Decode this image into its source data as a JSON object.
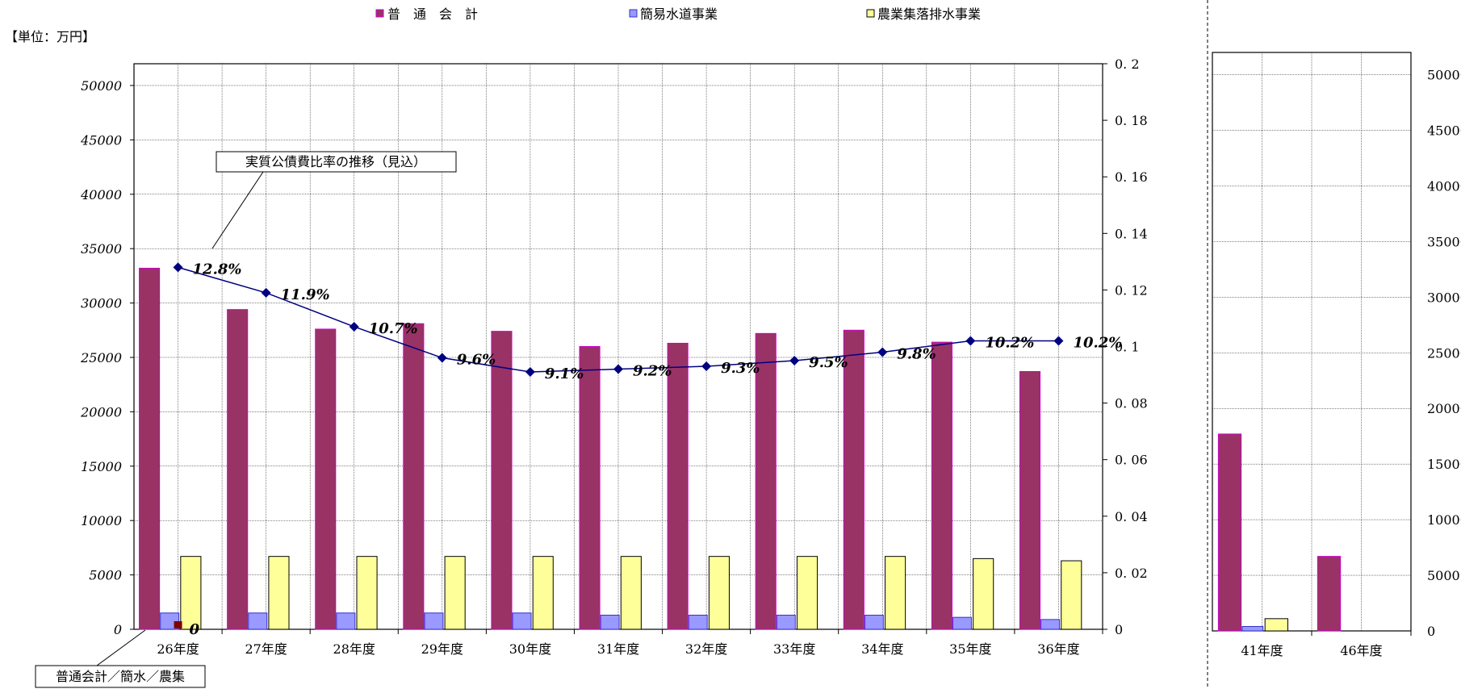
{
  "unit_label": "【単位：万円】",
  "colors": {
    "general": "#993366",
    "general_edge": "#cc00cc",
    "water": "#9999ff",
    "water_edge": "#3333cc",
    "agri": "#ffff99",
    "line": "#000080",
    "zero_marker": "#800000"
  },
  "legend": [
    {
      "name": "普　通　会　計",
      "color_key": "general"
    },
    {
      "name": "簡易水道事業",
      "color_key": "water"
    },
    {
      "name": "農業集落排水事業",
      "color_key": "agri"
    }
  ],
  "chart_data": [
    {
      "type": "bar",
      "categories": [
        "26年度",
        "27年度",
        "28年度",
        "29年度",
        "30年度",
        "31年度",
        "32年度",
        "33年度",
        "34年度",
        "35年度",
        "36年度"
      ],
      "series": [
        {
          "name": "普　通　会　計",
          "values": [
            33200,
            29400,
            27600,
            28100,
            27400,
            26000,
            26300,
            27200,
            27500,
            26400,
            23700
          ]
        },
        {
          "name": "簡易水道事業",
          "values": [
            1500,
            1500,
            1500,
            1500,
            1500,
            1300,
            1300,
            1300,
            1300,
            1100,
            900
          ]
        },
        {
          "name": "農業集落排水事業",
          "values": [
            6700,
            6700,
            6700,
            6700,
            6700,
            6700,
            6700,
            6700,
            6700,
            6500,
            6300
          ]
        }
      ],
      "line_series": {
        "name": "実質公債費比率の推移（見込）",
        "values": [
          0.128,
          0.119,
          0.107,
          0.096,
          0.091,
          0.092,
          0.093,
          0.095,
          0.098,
          0.102,
          0.102
        ],
        "labels": [
          "12.8%",
          "11.9%",
          "10.7%",
          "9.6%",
          "9.1%",
          "9.2%",
          "9.3%",
          "9.5%",
          "9.8%",
          "10.2%",
          "10.2%"
        ]
      },
      "zero_marker_label": "0",
      "annotation_line": "実質公債費比率の推移（見込）",
      "annotation_bars": "普通会計／簡水／農集",
      "ylim": [
        0,
        52000
      ],
      "yticks": [
        "0",
        "5000",
        "10000",
        "15000",
        "20000",
        "25000",
        "30000",
        "35000",
        "40000",
        "45000",
        "50000"
      ],
      "y2lim": [
        0,
        0.2
      ],
      "y2ticks": [
        "0",
        "0. 02",
        "0. 04",
        "0. 06",
        "0. 08",
        "0. 1",
        "0. 12",
        "0. 14",
        "0. 16",
        "0. 18",
        "0. 2"
      ],
      "grid": true
    },
    {
      "type": "bar",
      "categories": [
        "41年度",
        "46年度"
      ],
      "series": [
        {
          "name": "普　通　会　計",
          "values": [
            17700,
            6700
          ]
        },
        {
          "name": "簡易水道事業",
          "values": [
            400,
            0
          ]
        },
        {
          "name": "農業集落排水事業",
          "values": [
            1100,
            0
          ]
        }
      ],
      "ylim": [
        0,
        52000
      ],
      "yticks": [
        "0",
        "5000",
        "10000",
        "15000",
        "20000",
        "25000",
        "30000",
        "35000",
        "40000",
        "45000",
        "50000"
      ],
      "grid": true
    }
  ]
}
